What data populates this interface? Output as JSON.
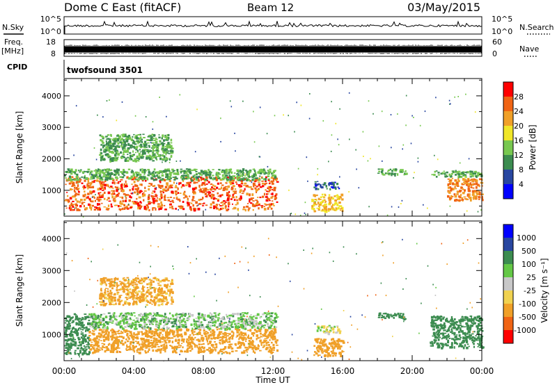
{
  "header": {
    "station": "Dome C East (fitACF)",
    "beam": "Beam 12",
    "date": "03/May/2015"
  },
  "strip_panels": {
    "noise": {
      "left_label": "N.Sky",
      "left_ticks": [
        "10^5",
        "10^0"
      ],
      "right_ticks": [
        "10^5",
        "10^0"
      ],
      "right_label": "N.Search"
    },
    "freq": {
      "left_label_1": "Freq.",
      "left_label_2": "[MHz]",
      "left_ticks": [
        "18",
        "8"
      ],
      "right_ticks": [
        "60",
        "0"
      ],
      "right_label": "Nave"
    },
    "cpid": {
      "label": "CPID",
      "program": "twofsound 3501"
    }
  },
  "colors": {
    "power_scale": [
      "#0000ff",
      "#2846a0",
      "#3c8c50",
      "#78c850",
      "#f0e628",
      "#f0a028",
      "#f06414",
      "#ff0000"
    ],
    "velocity_scale": [
      "#ff0000",
      "#f06414",
      "#f0a028",
      "#f0d250",
      "#c8c8c8",
      "#64c846",
      "#3c8c50",
      "#2846a0",
      "#0000ff"
    ],
    "noise_trace": "#000000"
  },
  "chart_data": [
    {
      "type": "heatmap",
      "name": "power",
      "ylabel": "Slant Range [km]",
      "xlabel": "Time UT",
      "xlim_hours": [
        0,
        24
      ],
      "ylim_km": [
        180,
        4550
      ],
      "yticks": [
        1000,
        2000,
        3000,
        4000
      ],
      "xtick_labels": [
        "00:00",
        "04:00",
        "08:00",
        "12:00",
        "16:00",
        "20:00",
        "00:00"
      ],
      "colorbar": {
        "label": "Power [dB]",
        "ticks": [
          "4",
          "8",
          "12",
          "16",
          "20",
          "24",
          "28"
        ],
        "range": [
          0,
          32
        ]
      },
      "regions": [
        {
          "t": [
            0.0,
            12.2
          ],
          "r": [
            400,
            1450
          ],
          "value": 26
        },
        {
          "t": [
            0.0,
            12.2
          ],
          "r": [
            1350,
            1700
          ],
          "value": 12
        },
        {
          "t": [
            2.0,
            6.2
          ],
          "r": [
            1950,
            2800
          ],
          "value": 12
        },
        {
          "t": [
            14.2,
            16.0
          ],
          "r": [
            350,
            900
          ],
          "value": 20
        },
        {
          "t": [
            14.3,
            15.8
          ],
          "r": [
            1050,
            1300
          ],
          "value": 6
        },
        {
          "t": [
            18.0,
            19.6
          ],
          "r": [
            1500,
            1700
          ],
          "value": 12
        },
        {
          "t": [
            21.0,
            24.0
          ],
          "r": [
            1450,
            1650
          ],
          "value": 12
        },
        {
          "t": [
            22.0,
            24.0
          ],
          "r": [
            700,
            1400
          ],
          "value": 24
        }
      ]
    },
    {
      "type": "heatmap",
      "name": "velocity",
      "ylabel": "Slant Range [km]",
      "xlabel": "Time UT",
      "xlim_hours": [
        0,
        24
      ],
      "ylim_km": [
        180,
        4550
      ],
      "yticks": [
        1000,
        2000,
        3000,
        4000
      ],
      "xtick_labels": [
        "00:00",
        "04:00",
        "08:00",
        "12:00",
        "16:00",
        "20:00",
        "00:00"
      ],
      "colorbar": {
        "label": "Velocity [m s⁻¹]",
        "ticks": [
          "-1000",
          "-500",
          "-100",
          "-25",
          "25",
          "100",
          "500",
          "1000"
        ]
      },
      "regions": [
        {
          "t": [
            0.0,
            1.4
          ],
          "r": [
            400,
            1700
          ],
          "value": 300
        },
        {
          "t": [
            1.4,
            12.2
          ],
          "r": [
            450,
            1200
          ],
          "value": -200
        },
        {
          "t": [
            1.4,
            12.2
          ],
          "r": [
            1200,
            1700
          ],
          "value": 60
        },
        {
          "t": [
            2.0,
            6.2
          ],
          "r": [
            1950,
            2800
          ],
          "value": -150
        },
        {
          "t": [
            14.3,
            16.0
          ],
          "r": [
            350,
            900
          ],
          "value": -200
        },
        {
          "t": [
            14.5,
            15.8
          ],
          "r": [
            1050,
            1300
          ],
          "value": 0
        },
        {
          "t": [
            18.0,
            19.6
          ],
          "r": [
            1500,
            1700
          ],
          "value": 300
        },
        {
          "t": [
            21.0,
            24.0
          ],
          "r": [
            600,
            1600
          ],
          "value": 300
        }
      ]
    }
  ]
}
